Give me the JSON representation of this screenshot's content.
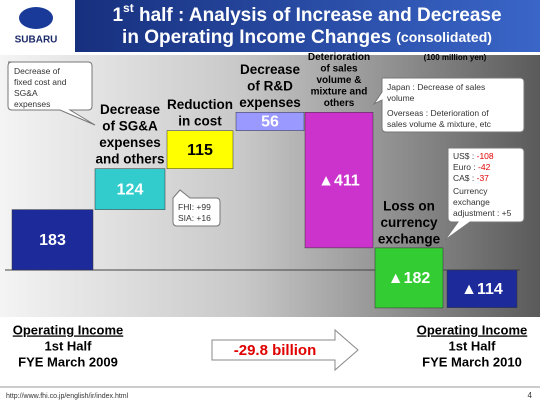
{
  "header": {
    "logo": "SUBARU"
  },
  "chart_data": {
    "type": "waterfall",
    "title": {
      "line1": [
        "1",
        "st",
        " half : Analysis of Increase and Decrease"
      ],
      "line2": [
        "in Operating Income Changes",
        "(consolidated)"
      ]
    },
    "unit": "(100 million yen)",
    "categories": [
      [
        "Operating Income",
        "1st Half",
        "FYE March 2009"
      ],
      [
        "Decrease",
        "of SG&A",
        "expenses",
        "and others"
      ],
      [
        "Reduction",
        "in cost"
      ],
      [
        "Decrease",
        "of R&D",
        "expenses"
      ],
      [
        "Deterioration",
        "of sales",
        "volume &",
        "mixture and",
        "others"
      ],
      [
        "Loss on",
        "currency",
        "exchange"
      ],
      [
        "Operating  Income",
        "1st Half",
        "FYE March 2010"
      ]
    ],
    "values": [
      183,
      124,
      115,
      56,
      -411,
      -182,
      -114
    ],
    "value_labels": [
      "183",
      "124",
      "115",
      "56",
      "▲411",
      "▲182",
      "▲114"
    ],
    "colors": [
      "#1c2a9a",
      "#33cccc",
      "#ffff00",
      "#9999ff",
      "#cc33cc",
      "#33cc33",
      "#1c2a9a"
    ],
    "change_label": "-29.8 billion",
    "annotations": {
      "fixed_cost": [
        "Decrease of",
        "fixed cost and",
        "SG&A",
        "expenses"
      ],
      "cost_breakdown": [
        "FHI: +99",
        "SIA: +16"
      ],
      "sales": [
        "Japan : Decrease of sales",
        "volume",
        "Overseas : Deterioration of",
        "sales volume & mixture, etc"
      ],
      "currency": [
        {
          "label": "US$ : ",
          "value": "-108"
        },
        {
          "label": "Euro : ",
          "value": "-42"
        },
        {
          "label": "CA$ : ",
          "value": "-37"
        }
      ],
      "currency_more": [
        "Currency",
        "exchange",
        "adjustment : +5"
      ]
    }
  },
  "footer": {
    "url": "http://www.fhi.co.jp/english/ir/index.html",
    "page": "4"
  }
}
